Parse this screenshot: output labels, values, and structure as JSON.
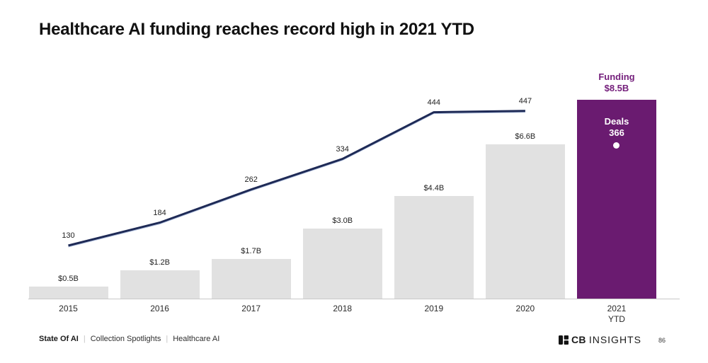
{
  "page": {
    "title": "Healthcare AI funding reaches record high in 2021 YTD"
  },
  "chart_data": {
    "type": "bar",
    "title": "Healthcare AI funding reaches record high in 2021 YTD",
    "categories": [
      "2015",
      "2016",
      "2017",
      "2018",
      "2019",
      "2020",
      "2021\nYTD"
    ],
    "series": [
      {
        "name": "Funding",
        "type": "bar",
        "unit": "$B",
        "values": [
          0.5,
          1.2,
          1.7,
          3.0,
          4.4,
          6.6,
          8.5
        ],
        "labels": [
          "$0.5B",
          "$1.2B",
          "$1.7B",
          "$3.0B",
          "$4.4B",
          "$6.6B",
          "$8.5B"
        ]
      },
      {
        "name": "Deals",
        "type": "line",
        "values": [
          130,
          184,
          262,
          334,
          444,
          447,
          366
        ]
      }
    ],
    "highlight_index": 6,
    "grid": false,
    "legend_position": "none",
    "ylim_bar": [
      0,
      8.5
    ],
    "colors": {
      "bar": "#e1e1e1",
      "highlight_bar": "#6a1b70",
      "line": "#1e2a56",
      "line_edge": "#9fb3d8",
      "annotation_text": "#75207c",
      "value_label_text": "#222222"
    },
    "annotations": {
      "funding_label": "Funding",
      "funding_value": "$8.5B",
      "deals_label": "Deals",
      "deals_value": "366"
    }
  },
  "footer": {
    "breadcrumbs": [
      "State Of AI",
      "Collection Spotlights",
      "Healthcare AI"
    ],
    "logo_text_bold": "CB",
    "logo_text_regular": "INSIGHTS",
    "page_number": "86"
  }
}
